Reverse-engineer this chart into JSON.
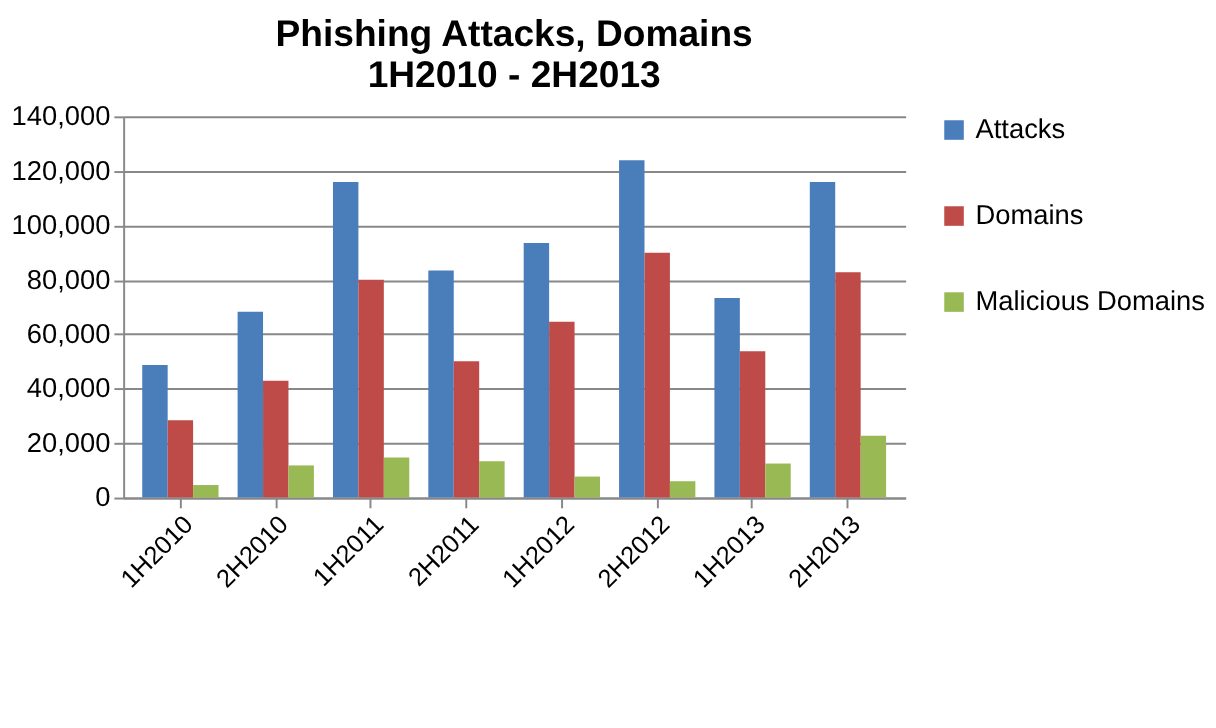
{
  "chart_data": {
    "type": "bar",
    "title": "Phishing Attacks, Domains\n1H2010 - 2H2013",
    "categories": [
      "1H2010",
      "2H2010",
      "1H2011",
      "2H2011",
      "1H2012",
      "2H2012",
      "1H2013",
      "2H2013"
    ],
    "series": [
      {
        "name": "Attacks",
        "color": "#4a7ebb",
        "values": [
          48700,
          68200,
          115900,
          83400,
          93500,
          123900,
          73300,
          115900
        ]
      },
      {
        "name": "Domains",
        "color": "#be4b48",
        "values": [
          28400,
          42900,
          80000,
          50100,
          64600,
          89900,
          53700,
          82700
        ]
      },
      {
        "name": "Malicious Domains",
        "color": "#98b954",
        "values": [
          4600,
          11800,
          14700,
          13300,
          7700,
          6000,
          12500,
          22700
        ]
      }
    ],
    "ylim": [
      0,
      140000
    ],
    "yticks": [
      {
        "value": 0,
        "label": "0"
      },
      {
        "value": 20000,
        "label": "20,000"
      },
      {
        "value": 40000,
        "label": "40,000"
      },
      {
        "value": 60000,
        "label": "60,000"
      },
      {
        "value": 80000,
        "label": "80,000"
      },
      {
        "value": 100000,
        "label": "100,000"
      },
      {
        "value": 120000,
        "label": "120,000"
      },
      {
        "value": 140000,
        "label": "140,000"
      }
    ],
    "grid": "y",
    "legend": "right"
  }
}
